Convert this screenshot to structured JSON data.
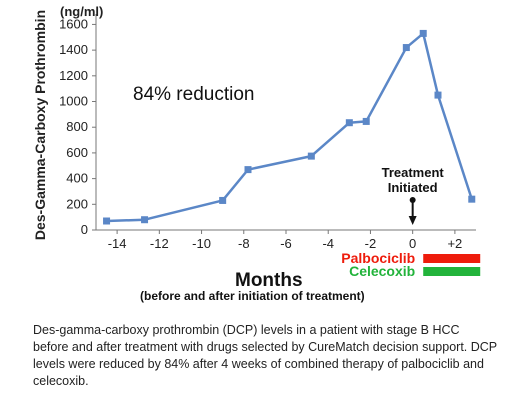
{
  "chart_data": {
    "type": "line",
    "unit_label": "(ng/ml)",
    "ylabel": "Des-Gamma-Carboxy Prothrombin",
    "xlabel": "Months",
    "xlabel_sub": "(before and after initiation of treatment)",
    "annotation": "84% reduction",
    "event_label_line1": "Treatment",
    "event_label_line2": "Initiated",
    "event_x": 0,
    "x_ticks": [
      -14,
      -12,
      -10,
      -8,
      -6,
      -4,
      -2,
      0,
      2
    ],
    "x_tick_labels": [
      "-14",
      "-12",
      "-10",
      "-8",
      "-6",
      "-4",
      "-2",
      "0",
      "+2"
    ],
    "y_ticks": [
      0,
      200,
      400,
      600,
      800,
      1000,
      1200,
      1400,
      1600
    ],
    "xlim": [
      -15,
      3
    ],
    "ylim": [
      0,
      1650
    ],
    "grid": false,
    "series": [
      {
        "color": "#5b87c7",
        "x": [
          -14.5,
          -12.7,
          -9,
          -7.8,
          -4.8,
          -3,
          -2.2,
          -0.3,
          0.5,
          1.2,
          2.8
        ],
        "y": [
          70,
          80,
          230,
          470,
          575,
          835,
          845,
          1420,
          1530,
          1050,
          240
        ]
      }
    ],
    "treatments": [
      {
        "label": "Palbociclib",
        "color": "#ee1c0c",
        "x_start": 0.5,
        "x_end": 3.2
      },
      {
        "label": "Celecoxib",
        "color": "#22b33b",
        "x_start": 0.5,
        "x_end": 3.2
      }
    ]
  },
  "caption": "Des-gamma-carboxy prothrombin (DCP) levels in a patient with stage B HCC before and after treatment with drugs selected by CureMatch decision support.  DCP levels were reduced by 84% after 4 weeks of combined therapy of palbociclib and celecoxib."
}
